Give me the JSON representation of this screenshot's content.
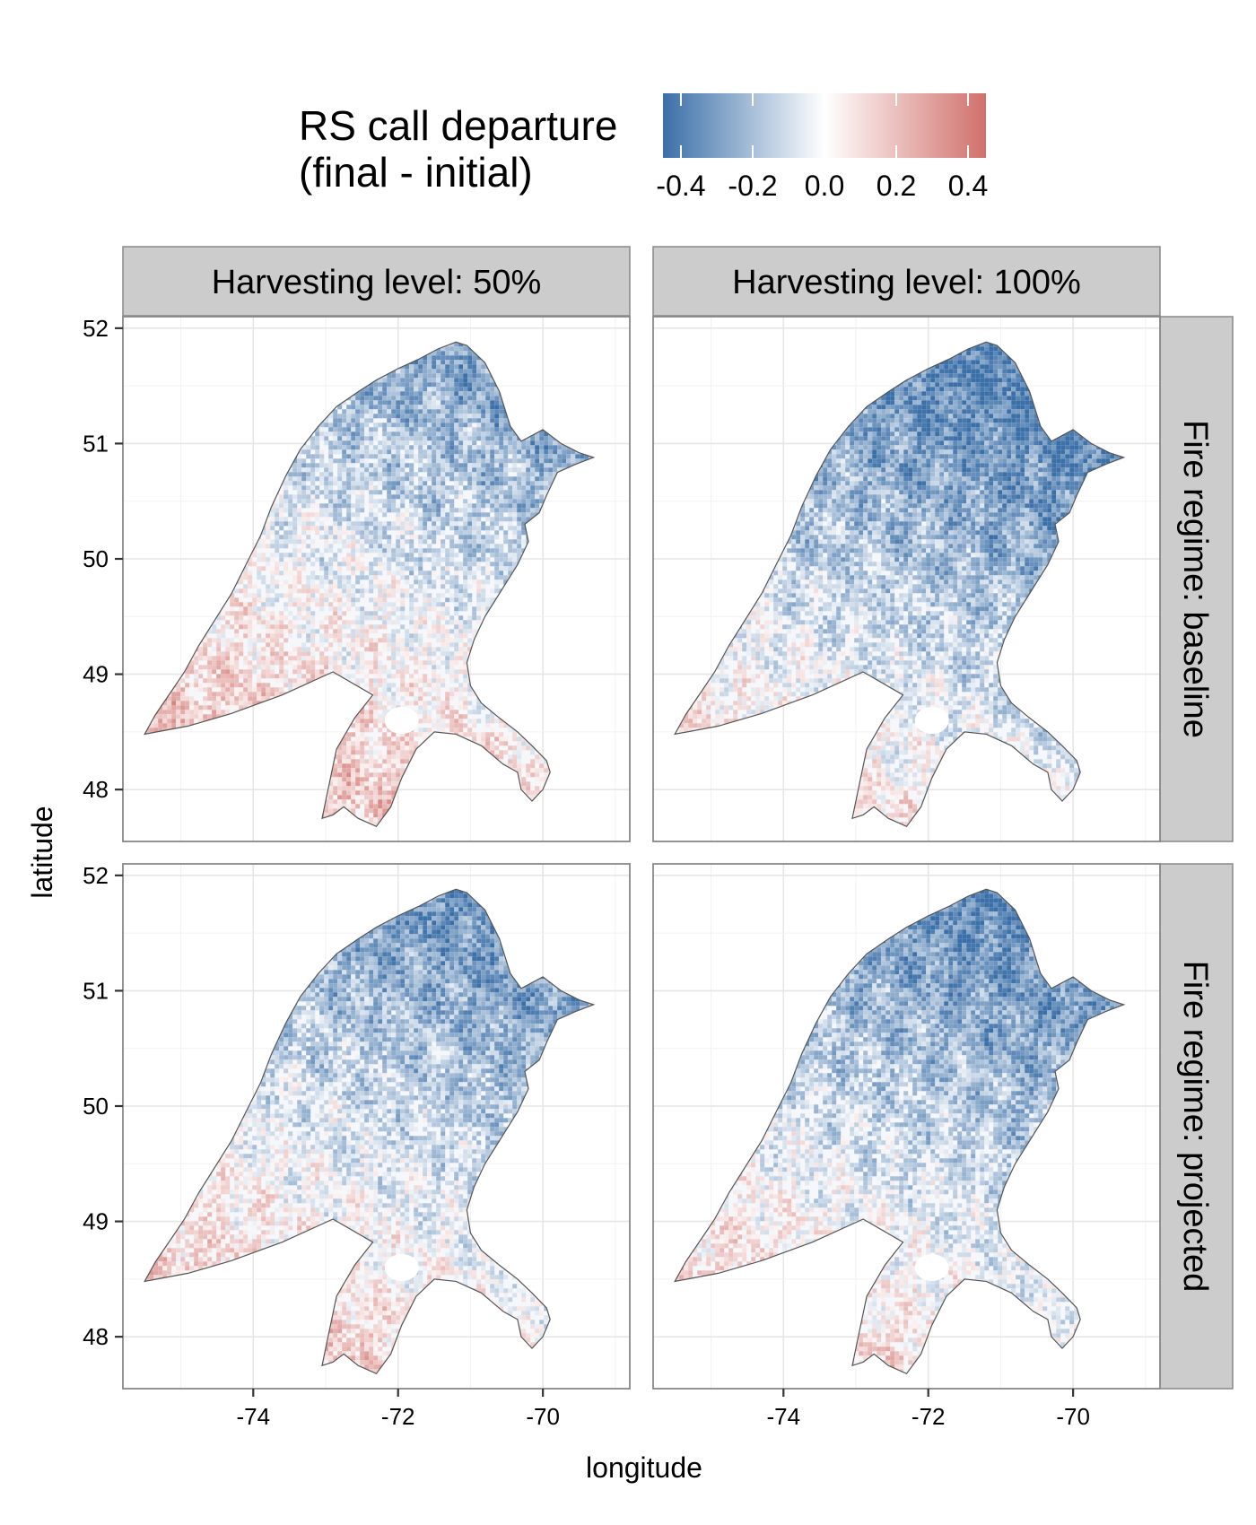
{
  "legend": {
    "title_line1": "RS call departure",
    "title_line2": "(final - initial)",
    "ticks": [
      -0.4,
      -0.2,
      0.0,
      0.2,
      0.4
    ],
    "tick_labels": [
      "-0.4",
      "-0.2",
      "0.0",
      "0.2",
      "0.4"
    ],
    "range": [
      -0.45,
      0.45
    ],
    "low_color": "#3b6fa8",
    "mid_color": "#ffffff",
    "high_color": "#d1706b"
  },
  "facets": {
    "columns": [
      "Harvesting level: 50%",
      "Harvesting level: 100%"
    ],
    "rows": [
      "Fire regime: baseline",
      "Fire regime: projected"
    ],
    "strip_fill": "#cccccc"
  },
  "axes": {
    "xlabel": "longitude",
    "ylabel": "latitude",
    "x_ticks": [
      -74,
      -72,
      -70
    ],
    "x_tick_labels": [
      "-74",
      "-72",
      "-70"
    ],
    "y_ticks": [
      48,
      49,
      50,
      51,
      52
    ],
    "y_tick_labels": [
      "48",
      "49",
      "50",
      "51",
      "52"
    ],
    "xlim": [
      -75.8,
      -68.8
    ],
    "ylim": [
      47.55,
      52.1
    ],
    "grid": true
  },
  "map_data": {
    "boundary_lonlat": [
      [
        -75.5,
        48.48
      ],
      [
        -75.35,
        48.65
      ],
      [
        -75.1,
        48.88
      ],
      [
        -74.95,
        49.02
      ],
      [
        -74.75,
        49.25
      ],
      [
        -74.55,
        49.45
      ],
      [
        -74.3,
        49.7
      ],
      [
        -74.1,
        49.95
      ],
      [
        -73.9,
        50.2
      ],
      [
        -73.75,
        50.45
      ],
      [
        -73.55,
        50.72
      ],
      [
        -73.35,
        50.95
      ],
      [
        -73.1,
        51.15
      ],
      [
        -72.85,
        51.32
      ],
      [
        -72.55,
        51.45
      ],
      [
        -72.3,
        51.55
      ],
      [
        -72.0,
        51.65
      ],
      [
        -71.72,
        51.73
      ],
      [
        -71.45,
        51.82
      ],
      [
        -71.2,
        51.88
      ],
      [
        -71.05,
        51.85
      ],
      [
        -70.8,
        51.7
      ],
      [
        -70.6,
        51.45
      ],
      [
        -70.45,
        51.15
      ],
      [
        -70.3,
        51.02
      ],
      [
        -70.0,
        51.12
      ],
      [
        -69.75,
        51.0
      ],
      [
        -69.5,
        50.92
      ],
      [
        -69.3,
        50.88
      ],
      [
        -69.55,
        50.82
      ],
      [
        -69.8,
        50.75
      ],
      [
        -69.95,
        50.55
      ],
      [
        -70.05,
        50.4
      ],
      [
        -70.25,
        50.3
      ],
      [
        -70.2,
        50.15
      ],
      [
        -70.35,
        49.95
      ],
      [
        -70.5,
        49.8
      ],
      [
        -70.65,
        49.65
      ],
      [
        -70.8,
        49.5
      ],
      [
        -70.95,
        49.3
      ],
      [
        -71.05,
        49.1
      ],
      [
        -71.0,
        48.9
      ],
      [
        -70.85,
        48.75
      ],
      [
        -70.6,
        48.62
      ],
      [
        -70.35,
        48.5
      ],
      [
        -70.15,
        48.38
      ],
      [
        -69.95,
        48.25
      ],
      [
        -69.9,
        48.15
      ],
      [
        -70.0,
        48.0
      ],
      [
        -70.15,
        47.9
      ],
      [
        -70.3,
        48.0
      ],
      [
        -70.35,
        48.15
      ],
      [
        -70.55,
        48.22
      ],
      [
        -70.85,
        48.38
      ],
      [
        -71.2,
        48.48
      ],
      [
        -71.5,
        48.5
      ],
      [
        -71.75,
        48.35
      ],
      [
        -71.95,
        48.1
      ],
      [
        -72.1,
        47.85
      ],
      [
        -72.3,
        47.68
      ],
      [
        -72.55,
        47.75
      ],
      [
        -72.75,
        47.85
      ],
      [
        -72.9,
        47.78
      ],
      [
        -73.05,
        47.75
      ],
      [
        -72.95,
        48.05
      ],
      [
        -72.85,
        48.35
      ],
      [
        -72.6,
        48.62
      ],
      [
        -72.35,
        48.82
      ],
      [
        -72.9,
        49.02
      ],
      [
        -73.6,
        48.82
      ],
      [
        -74.3,
        48.66
      ],
      [
        -74.9,
        48.55
      ],
      [
        -75.5,
        48.48
      ]
    ],
    "lake_center": [
      -71.95,
      48.6
    ]
  }
}
